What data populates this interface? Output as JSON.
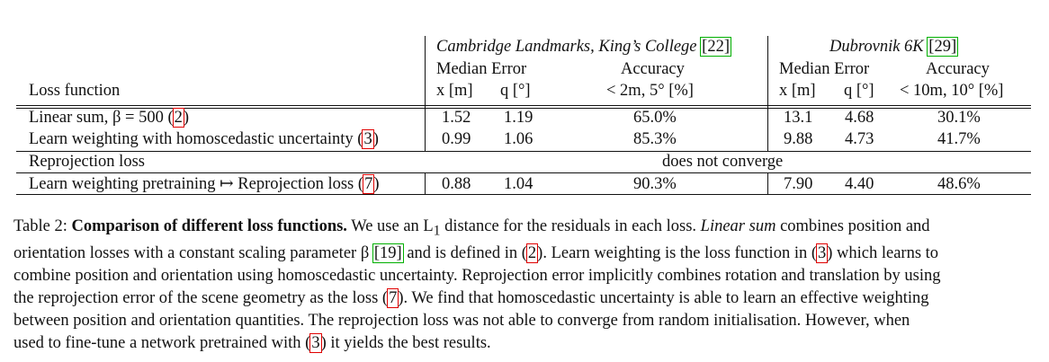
{
  "table": {
    "group_headers": {
      "cambridge": "Cambridge Landmarks, King’s College",
      "cambridge_ref": "22",
      "dubrovnik": "Dubrovnik 6K",
      "dubrovnik_ref": "29"
    },
    "subheaders": {
      "median_error": "Median Error",
      "accuracy": "Accuracy"
    },
    "columns": {
      "loss_function": "Loss function",
      "x_m": "x [m]",
      "q_deg": "q [°]",
      "acc_cambridge": "< 2m, 5° [%]",
      "acc_dubrovnik": "< 10m, 10° [%]"
    },
    "rows": [
      {
        "name": "Linear sum, β = 500",
        "ref": "2",
        "x1": "1.52",
        "q1": "1.19",
        "a1": "65.0%",
        "x2": "13.1",
        "q2": "4.68",
        "a2": "30.1%"
      },
      {
        "name": "Learn weighting with homoscedastic uncertainty",
        "ref": "3",
        "x1": "0.99",
        "q1": "1.06",
        "a1": "85.3%",
        "x2": "9.88",
        "q2": "4.73",
        "a2": "41.7%"
      },
      {
        "name": "Reprojection loss",
        "ref": "",
        "span": "does not converge"
      },
      {
        "name": "Learn weighting pretraining ↦ Reprojection loss",
        "ref": "7",
        "x1": "0.88",
        "q1": "1.04",
        "a1": "90.3%",
        "x2": "7.90",
        "q2": "4.40",
        "a2": "48.6%"
      }
    ]
  },
  "caption": {
    "label": "Table 2:",
    "bold_title": "Comparison of different loss functions.",
    "lines": [
      [
        "We use an L",
        "1",
        " distance for the residuals in each loss. ",
        "Linear sum",
        " combines position and"
      ],
      [
        "orientation losses with a constant scaling parameter β ",
        "19",
        " and is defined in (",
        "2",
        "). Learn weighting is the loss function in (",
        "3",
        ") which learns to"
      ],
      [
        "combine position and orientation using homoscedastic uncertainty. Reprojection error implicitly combines rotation and translation by using"
      ],
      [
        "the reprojection error of the scene geometry as the loss (",
        "7",
        "). We find that homoscedastic uncertainty is able to learn an effective weighting"
      ],
      [
        "between position and orientation quantities.  The reprojection loss was not able to converge from random initialisation.  However, when"
      ],
      [
        "used to fine-tune a network pretrained with (",
        "3",
        ") it yields the best results."
      ]
    ]
  }
}
